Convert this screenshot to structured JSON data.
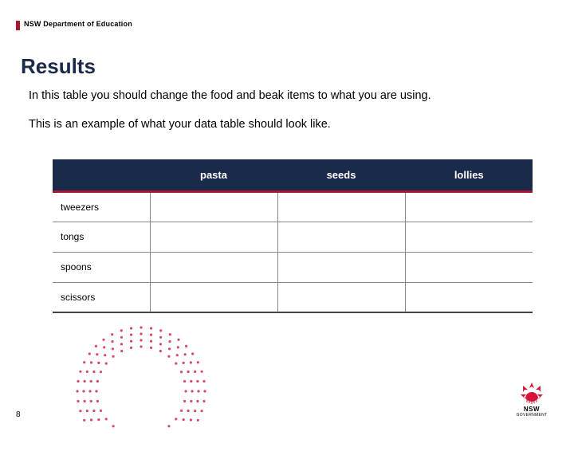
{
  "header": {
    "accent_color": "#a71930",
    "department": "NSW Department of Education"
  },
  "title": "Results",
  "body": {
    "line1": "In this table you should change the food and beak items to what you are using.",
    "line2": "This is an example of what your data table should look like."
  },
  "table": {
    "header_bg": "#1a2a4a",
    "header_underline": "#a71930",
    "columns": [
      "pasta",
      "seeds",
      "lollies"
    ],
    "rows": [
      "tweezers",
      "tongs",
      "spoons",
      "scissors"
    ]
  },
  "dot_arc": {
    "dot_color": "#d64a6b",
    "dot_radius": 1.6
  },
  "page_number": "8",
  "logo": {
    "flower_color": "#d7153a",
    "text": "NSW",
    "subtext": "GOVERNMENT"
  }
}
